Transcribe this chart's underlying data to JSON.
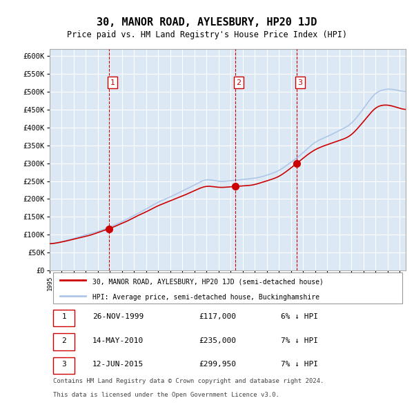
{
  "title": "30, MANOR ROAD, AYLESBURY, HP20 1JD",
  "subtitle": "Price paid vs. HM Land Registry's House Price Index (HPI)",
  "xlabel": "",
  "ylabel": "",
  "ylim": [
    0,
    620000
  ],
  "yticks": [
    0,
    50000,
    100000,
    150000,
    200000,
    250000,
    300000,
    350000,
    400000,
    450000,
    500000,
    550000,
    600000
  ],
  "ytick_labels": [
    "£0",
    "£50K",
    "£100K",
    "£150K",
    "£200K",
    "£250K",
    "£300K",
    "£350K",
    "£400K",
    "£450K",
    "£500K",
    "£550K",
    "£600K"
  ],
  "hpi_color": "#aec6e8",
  "price_color": "#cc0000",
  "marker_color": "#cc0000",
  "vline_color": "#cc0000",
  "bg_color": "#dce9f5",
  "grid_color": "#ffffff",
  "sale1": {
    "date_num": 1999.9,
    "price": 117000,
    "label": "1",
    "date_str": "26-NOV-1999",
    "pct": "6%"
  },
  "sale2": {
    "date_num": 2010.37,
    "price": 235000,
    "label": "2",
    "date_str": "14-MAY-2010",
    "pct": "7%"
  },
  "sale3": {
    "date_num": 2015.44,
    "price": 299950,
    "label": "3",
    "date_str": "12-JUN-2015",
    "pct": "7%"
  },
  "legend_line1": "30, MANOR ROAD, AYLESBURY, HP20 1JD (semi-detached house)",
  "legend_line2": "HPI: Average price, semi-detached house, Buckinghamshire",
  "footer1": "Contains HM Land Registry data © Crown copyright and database right 2024.",
  "footer2": "This data is licensed under the Open Government Licence v3.0."
}
